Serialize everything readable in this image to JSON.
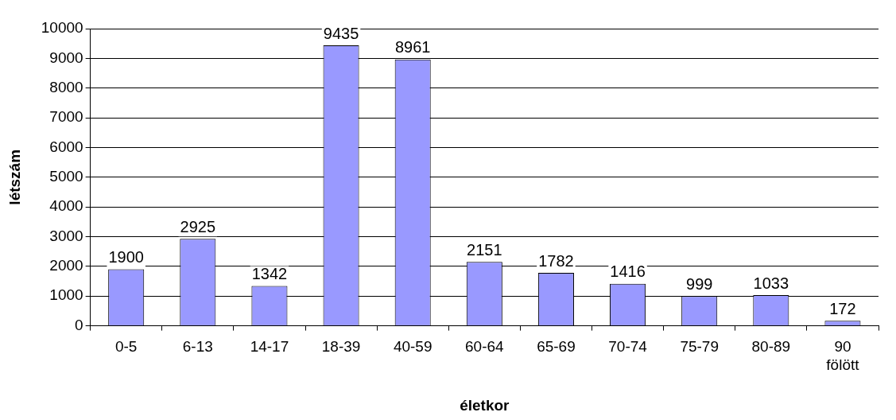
{
  "chart_data": {
    "type": "bar",
    "xlabel": "életkor",
    "ylabel": "létszám",
    "categories": [
      "0-5",
      "6-13",
      "14-17",
      "18-39",
      "40-59",
      "60-64",
      "65-69",
      "70-74",
      "75-79",
      "80-89",
      "90 fölött"
    ],
    "values": [
      1900,
      2925,
      1342,
      9435,
      8961,
      2151,
      1782,
      1416,
      999,
      1033,
      172
    ],
    "color": "#9999ff",
    "ylim": [
      0,
      10000
    ],
    "yticks": [
      0,
      1000,
      2000,
      3000,
      4000,
      5000,
      6000,
      7000,
      8000,
      9000,
      10000
    ],
    "grid": "y",
    "legend": false,
    "data_labels": true
  }
}
